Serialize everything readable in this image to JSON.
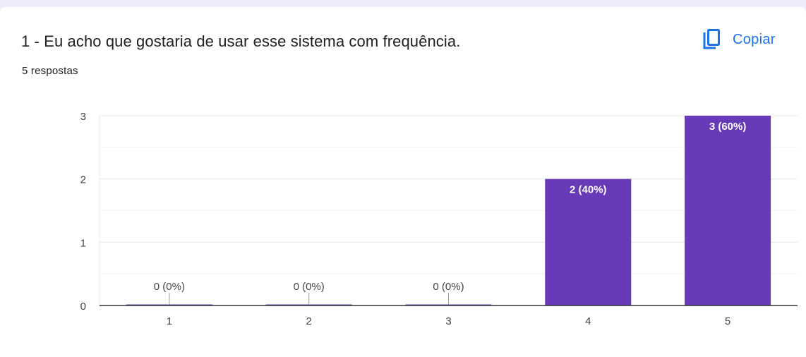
{
  "question": {
    "title": "1 - Eu acho que gostaria de usar esse sistema com frequência.",
    "responses": "5 respostas"
  },
  "toolbar": {
    "copy_label": "Copiar",
    "copy_icon": "copy-icon"
  },
  "colors": {
    "bar": "#673ab7",
    "accent": "#1a73e8",
    "page_background": "#f0ebf8"
  },
  "chart_data": {
    "type": "bar",
    "categories": [
      "1",
      "2",
      "3",
      "4",
      "5"
    ],
    "values": [
      0,
      0,
      0,
      2,
      3
    ],
    "data_labels": [
      "0 (0%)",
      "0 (0%)",
      "0 (0%)",
      "2 (40%)",
      "3 (60%)"
    ],
    "ylim": [
      0,
      3
    ],
    "yticks": [
      0,
      1,
      2,
      3
    ],
    "title": "",
    "xlabel": "",
    "ylabel": "",
    "grid": true
  }
}
